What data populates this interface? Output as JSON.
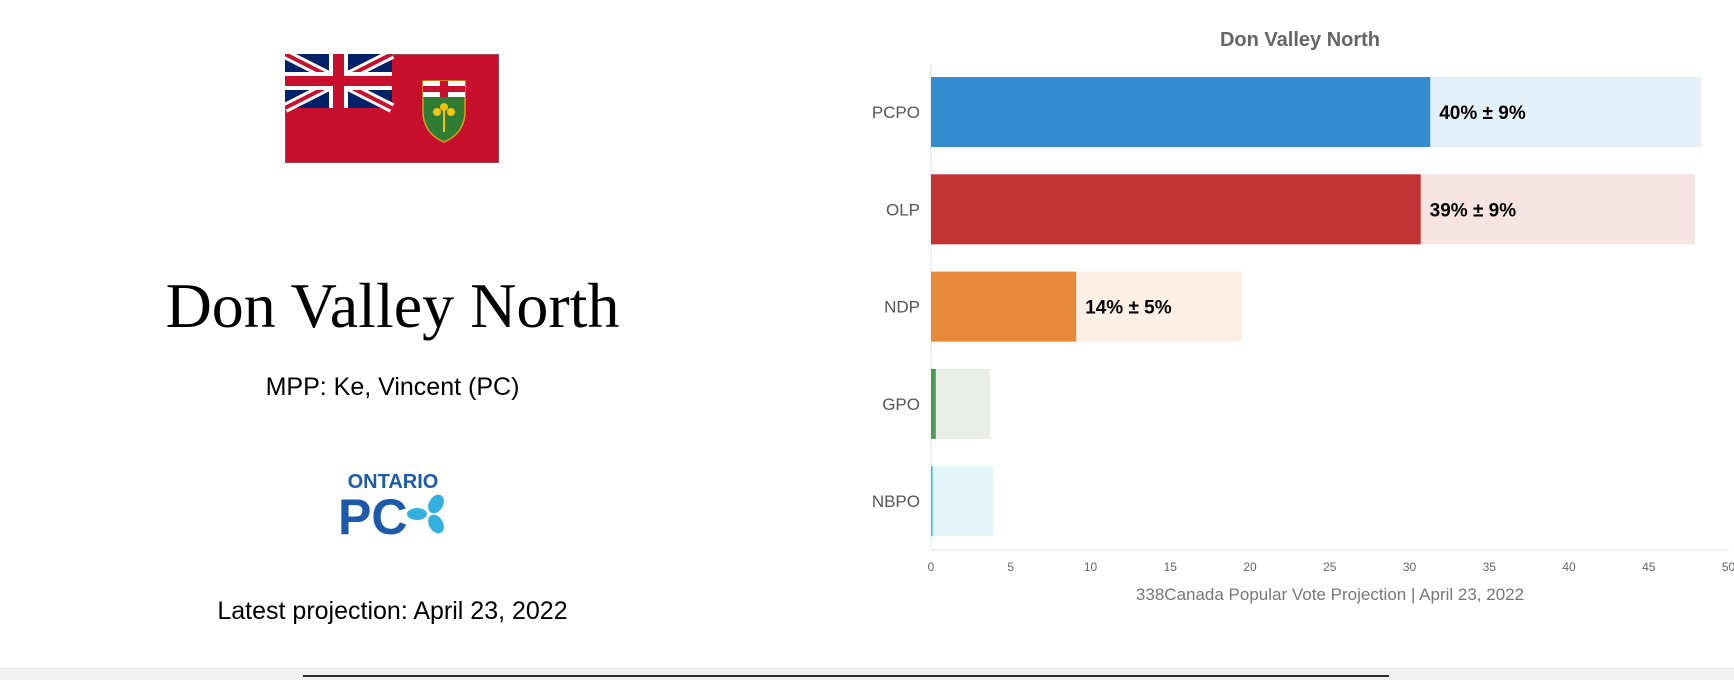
{
  "page": {
    "riding_name": "Don Valley North",
    "mpp_text": "MPP: Ke, Vincent (PC)",
    "latest_projection_text": "Latest projection: April 23, 2022",
    "flag_icon": "ontario-flag-icon",
    "party_logo": {
      "icon": "ontario-pc-logo",
      "line1": "ONTARIO",
      "line2": "PC"
    }
  },
  "chart_data": {
    "type": "bar",
    "orientation": "horizontal",
    "title": "Don Valley North",
    "xlabel": "338Canada Popular Vote Projection | April 23, 2022",
    "ylabel": "",
    "xlim": [
      0,
      50
    ],
    "xticks": [
      0,
      5,
      10,
      15,
      20,
      25,
      30,
      35,
      40,
      45,
      50
    ],
    "grid": false,
    "categories": [
      "PCPO",
      "OLP",
      "NDP",
      "GPO",
      "NBPO"
    ],
    "values": [
      31.3,
      30.7,
      9.1,
      0.3,
      0.1
    ],
    "upper": [
      48.3,
      47.9,
      19.5,
      3.7,
      3.9
    ],
    "colors": [
      "#348bcd",
      "#c23434",
      "#e8883b",
      "#4e9a52",
      "#3bbfdc"
    ],
    "band_colors": [
      "#e3eff9",
      "#f6e4e4",
      "#fcefe5",
      "#e9efe8",
      "#e2f5fb"
    ],
    "labels": [
      "40% ± 9%",
      "39% ± 9%",
      "14% ± 5%",
      "",
      ""
    ]
  }
}
